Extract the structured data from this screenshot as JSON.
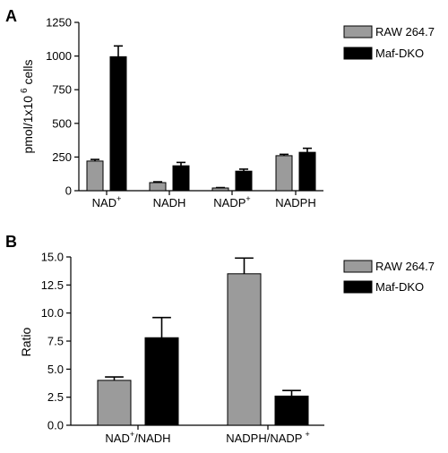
{
  "chart_data": [
    {
      "panel_label": "A",
      "type": "bar",
      "ylabel": "pmol/1x10",
      "ylabel_sup": "6",
      "ylabel_tail": " cells",
      "ylim": [
        0,
        1250
      ],
      "yticks": [
        0,
        250,
        500,
        750,
        1000,
        1250
      ],
      "grid": false,
      "legend_position": "top-right",
      "categories": [
        {
          "base": "NAD",
          "sup": "+",
          "tail": "",
          "sup2": ""
        },
        {
          "base": "NADH",
          "sup": "",
          "tail": "",
          "sup2": ""
        },
        {
          "base": "NADP",
          "sup": "+",
          "tail": "",
          "sup2": ""
        },
        {
          "base": "NADPH",
          "sup": "",
          "tail": "",
          "sup2": ""
        }
      ],
      "series": [
        {
          "name": "RAW 264.7",
          "color": "#9b9b9b",
          "values": [
            220,
            60,
            20,
            260
          ],
          "errors": [
            12,
            6,
            3,
            10
          ]
        },
        {
          "name": "Maf-DKO",
          "color": "#000000",
          "values": [
            995,
            185,
            145,
            285
          ],
          "errors": [
            80,
            25,
            15,
            30
          ]
        }
      ]
    },
    {
      "panel_label": "B",
      "type": "bar",
      "ylabel": "Ratio",
      "ylim": [
        0,
        15
      ],
      "yticks": [
        0.0,
        2.5,
        5.0,
        7.5,
        10.0,
        12.5,
        15.0
      ],
      "grid": false,
      "legend_position": "top-right",
      "categories": [
        {
          "base": "NAD",
          "sup": "+",
          "tail": "/NADH",
          "sup2": ""
        },
        {
          "base": "NADPH/NADP",
          "sup": "",
          "tail": "",
          "sup2": "+"
        }
      ],
      "series": [
        {
          "name": "RAW 264.7",
          "color": "#9b9b9b",
          "values": [
            4.0,
            13.5
          ],
          "errors": [
            0.3,
            1.4
          ]
        },
        {
          "name": "Maf-DKO",
          "color": "#000000",
          "values": [
            7.8,
            2.6
          ],
          "errors": [
            1.8,
            0.5
          ]
        }
      ]
    }
  ]
}
